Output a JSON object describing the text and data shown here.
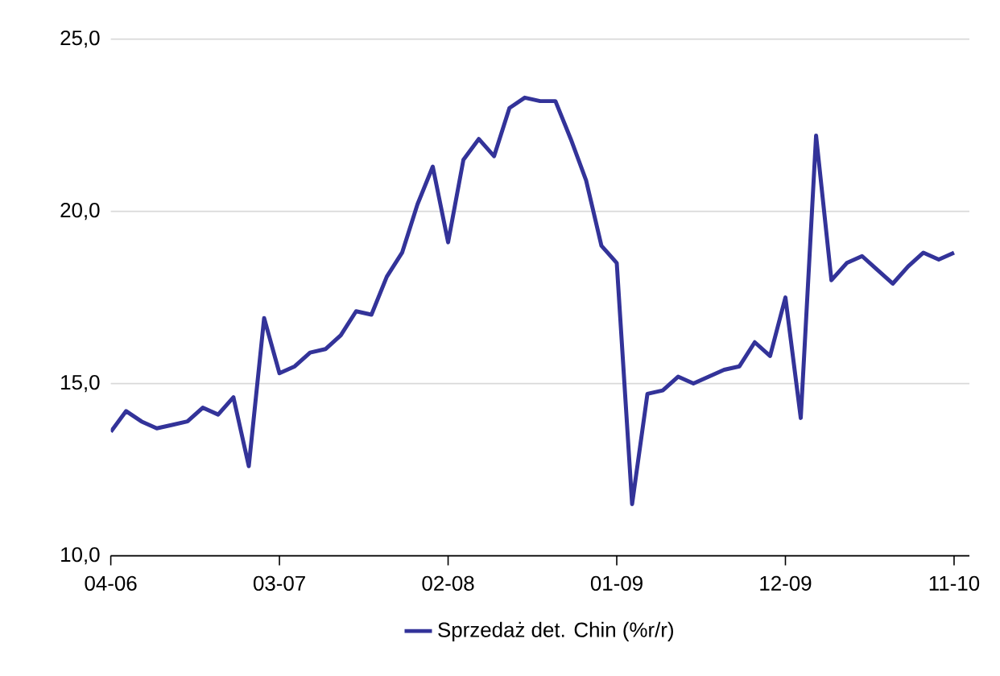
{
  "chart_data": {
    "type": "line",
    "x": [
      "2006-04",
      "2006-05",
      "2006-06",
      "2006-07",
      "2006-08",
      "2006-09",
      "2006-10",
      "2006-11",
      "2006-12",
      "2007-01",
      "2007-02",
      "2007-03",
      "2007-04",
      "2007-05",
      "2007-06",
      "2007-07",
      "2007-08",
      "2007-09",
      "2007-10",
      "2007-11",
      "2007-12",
      "2008-01",
      "2008-02",
      "2008-03",
      "2008-04",
      "2008-05",
      "2008-06",
      "2008-07",
      "2008-08",
      "2008-09",
      "2008-10",
      "2008-11",
      "2008-12",
      "2009-01",
      "2009-02",
      "2009-03",
      "2009-04",
      "2009-05",
      "2009-06",
      "2009-07",
      "2009-08",
      "2009-09",
      "2009-10",
      "2009-11",
      "2009-12",
      "2010-01",
      "2010-02",
      "2010-03",
      "2010-04",
      "2010-05",
      "2010-06",
      "2010-07",
      "2010-08",
      "2010-09",
      "2010-10",
      "2010-11"
    ],
    "series": [
      {
        "name": "Sprzedaż det. Chin (%r/r)",
        "color": "#333399",
        "values": [
          13.6,
          14.2,
          13.9,
          13.7,
          13.8,
          13.9,
          14.3,
          14.1,
          14.6,
          12.6,
          16.9,
          15.3,
          15.5,
          15.9,
          16.0,
          16.4,
          17.1,
          17.0,
          18.1,
          18.8,
          20.2,
          21.3,
          19.1,
          21.5,
          22.1,
          21.6,
          23.0,
          23.3,
          23.2,
          23.2,
          22.1,
          20.9,
          19.0,
          18.5,
          11.5,
          14.7,
          14.8,
          15.2,
          15.0,
          15.2,
          15.4,
          15.5,
          16.2,
          15.8,
          17.5,
          14.0,
          22.2,
          18.0,
          18.5,
          18.7,
          18.3,
          17.9,
          18.4,
          18.8,
          18.6,
          18.8
        ]
      }
    ],
    "xlim": [
      "2006-04",
      "2010-12"
    ],
    "xticks": [
      {
        "value": "2006-04",
        "label": "04-06"
      },
      {
        "value": "2007-03",
        "label": "03-07"
      },
      {
        "value": "2008-02",
        "label": "02-08"
      },
      {
        "value": "2009-01",
        "label": "01-09"
      },
      {
        "value": "2009-12",
        "label": "12-09"
      },
      {
        "value": "2010-11",
        "label": "11-10"
      }
    ],
    "ylim": [
      10,
      25
    ],
    "yticks": [
      {
        "value": 10,
        "label": "10,0"
      },
      {
        "value": 15,
        "label": "15,0"
      },
      {
        "value": 20,
        "label": "20,0"
      },
      {
        "value": 25,
        "label": "25,0"
      }
    ],
    "grid": "y",
    "legend": "bottom",
    "marker": "none",
    "line_style": "solid"
  }
}
